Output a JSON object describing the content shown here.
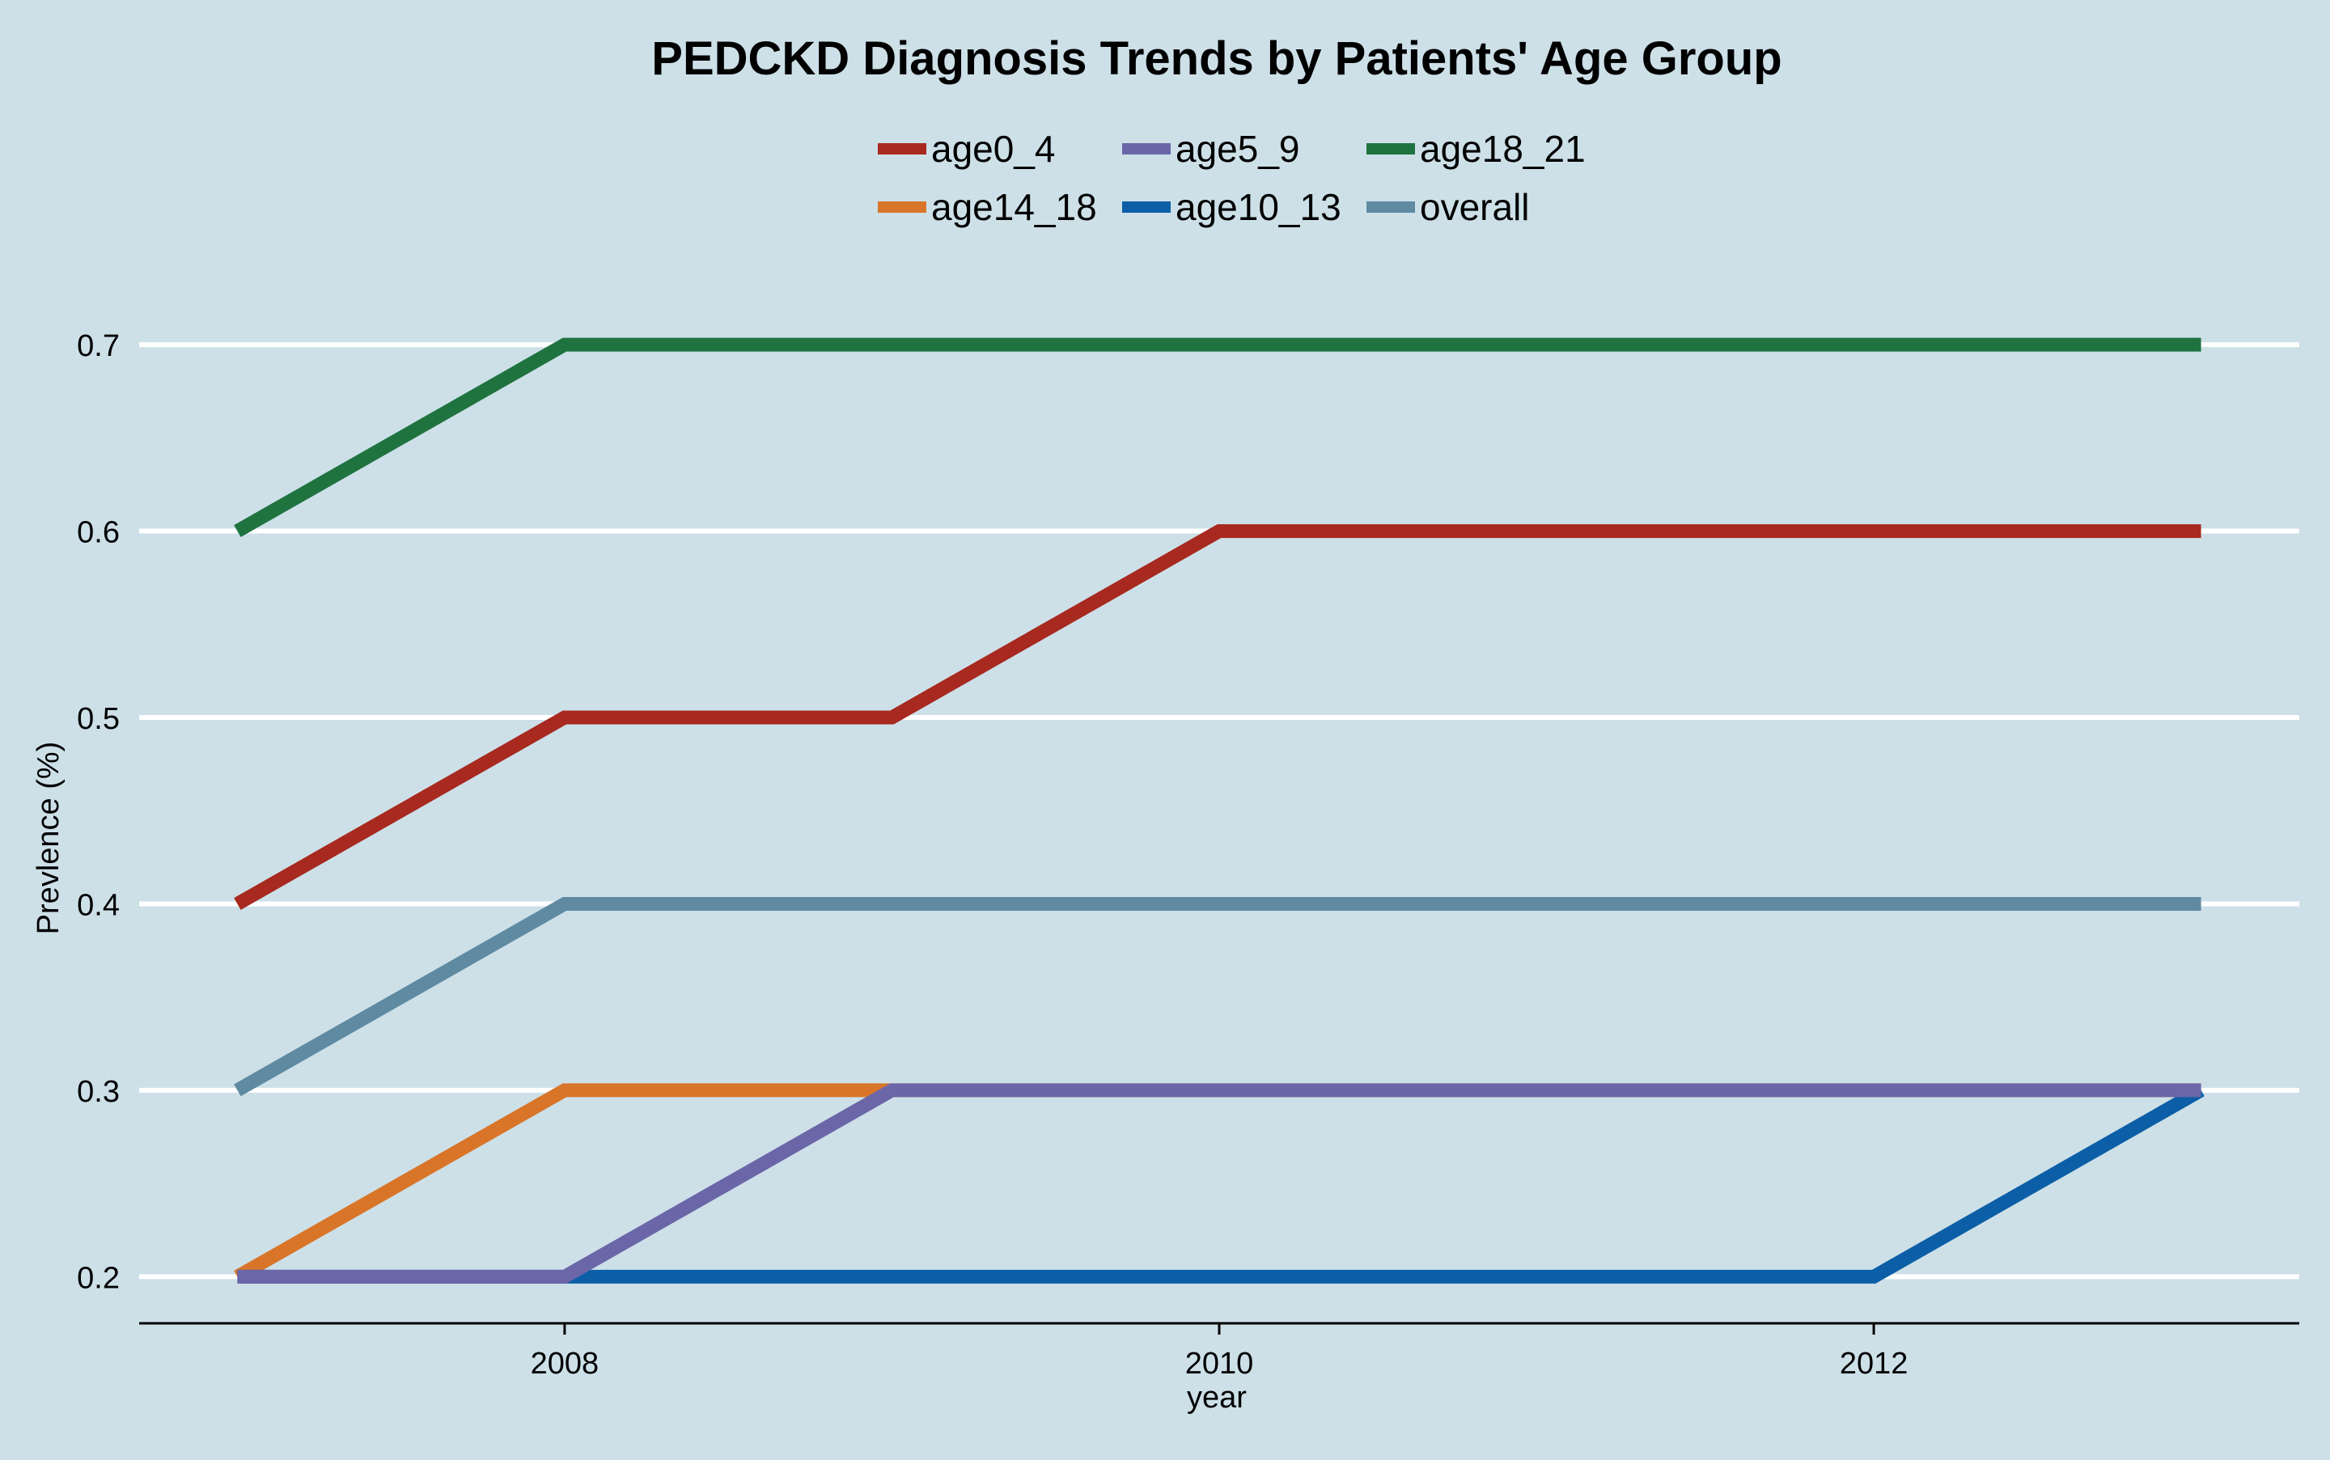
{
  "chart_data": {
    "type": "line",
    "title": "PEDCKD Diagnosis Trends by Patients' Age Group",
    "xlabel": "year",
    "ylabel": "Prevlence (%)",
    "x": [
      2007,
      2008,
      2009,
      2010,
      2011,
      2012,
      2013
    ],
    "xlim": [
      2006.7,
      2013.3
    ],
    "ylim": [
      0.175,
      0.72
    ],
    "xticks": [
      2008,
      2010,
      2012
    ],
    "yticks": [
      0.2,
      0.3,
      0.4,
      0.5,
      0.6,
      0.7
    ],
    "grid": "horizontal",
    "legend_position": "top",
    "series": [
      {
        "name": "age0_4",
        "color": "#a8291f",
        "values": [
          0.4,
          0.5,
          0.5,
          0.6,
          0.6,
          0.6,
          0.6
        ]
      },
      {
        "name": "age14_18",
        "color": "#d97528",
        "values": [
          0.2,
          0.3,
          0.3,
          0.3,
          0.3,
          0.3,
          0.3
        ]
      },
      {
        "name": "age5_9",
        "color": "#6b66a8",
        "values": [
          0.2,
          0.2,
          0.3,
          0.3,
          0.3,
          0.3,
          0.3
        ]
      },
      {
        "name": "age10_13",
        "color": "#0c5fa6",
        "values": [
          0.2,
          0.2,
          0.2,
          0.2,
          0.2,
          0.2,
          0.3
        ]
      },
      {
        "name": "age18_21",
        "color": "#1f733f",
        "values": [
          0.6,
          0.7,
          0.7,
          0.7,
          0.7,
          0.7,
          0.7
        ]
      },
      {
        "name": "overall",
        "color": "#5f8aa2",
        "values": [
          0.3,
          0.4,
          0.4,
          0.4,
          0.4,
          0.4,
          0.4
        ]
      }
    ],
    "draw_order": [
      "overall",
      "age18_21",
      "age0_4",
      "age14_18",
      "age10_13",
      "age5_9"
    ]
  }
}
